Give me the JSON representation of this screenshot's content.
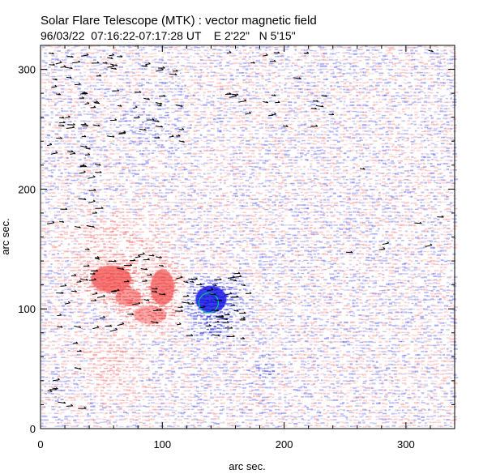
{
  "chart_data": {
    "type": "heatmap",
    "title": "Solar Flare Telescope (MTK) : vector magnetic field",
    "subtitle": "96/03/22  07:16:22-07:17:28 UT    E 2'22\"   N 5'15\"",
    "xlabel": "arc sec.",
    "ylabel": "arc sec.",
    "xlim": [
      0,
      340
    ],
    "ylim": [
      0,
      320
    ],
    "x_ticks": [
      0,
      100,
      200,
      300
    ],
    "y_ticks": [
      0,
      100,
      200,
      300
    ],
    "x_tick_labels": [
      "0",
      "100",
      "200",
      "300"
    ],
    "y_tick_labels": [
      "0",
      "100",
      "200",
      "300"
    ],
    "positive_polarity_color": "#f25a5a",
    "negative_polarity_color": "#1515e0",
    "contour_color": "#00c8a0",
    "arrow_color": "#000000",
    "regions": [
      {
        "polarity": "positive",
        "cx": 58,
        "cy": 125,
        "rx": 22,
        "ry": 15,
        "strength": 0.95
      },
      {
        "polarity": "positive",
        "cx": 72,
        "cy": 110,
        "rx": 14,
        "ry": 10,
        "strength": 0.7
      },
      {
        "polarity": "positive",
        "cx": 100,
        "cy": 118,
        "rx": 13,
        "ry": 20,
        "strength": 0.9
      },
      {
        "polarity": "positive",
        "cx": 90,
        "cy": 95,
        "rx": 18,
        "ry": 10,
        "strength": 0.6
      },
      {
        "polarity": "positive",
        "cx": 60,
        "cy": 160,
        "rx": 45,
        "ry": 25,
        "strength": 0.25
      },
      {
        "polarity": "positive",
        "cx": 60,
        "cy": 55,
        "rx": 22,
        "ry": 25,
        "strength": 0.3
      },
      {
        "polarity": "negative",
        "cx": 140,
        "cy": 108,
        "rx": 17,
        "ry": 15,
        "strength": 1.0
      },
      {
        "polarity": "negative",
        "cx": 140,
        "cy": 85,
        "rx": 14,
        "ry": 10,
        "strength": 0.4
      },
      {
        "polarity": "negative",
        "cx": 80,
        "cy": 120,
        "rx": 5,
        "ry": 5,
        "strength": 0.5
      },
      {
        "polarity": "negative",
        "cx": 185,
        "cy": 48,
        "rx": 8,
        "ry": 8,
        "strength": 0.35
      },
      {
        "polarity": "negative",
        "cx": 90,
        "cy": 255,
        "rx": 25,
        "ry": 18,
        "strength": 0.15
      }
    ],
    "contours": [
      {
        "cx": 138,
        "cy": 105,
        "r": 8
      }
    ],
    "vector_regions": [
      {
        "x": [
          5,
          115
        ],
        "y": [
          240,
          315
        ],
        "count": 70
      },
      {
        "x": [
          5,
          45
        ],
        "y": [
          60,
          240
        ],
        "count": 40
      },
      {
        "x": [
          110,
          170
        ],
        "y": [
          75,
          130
        ],
        "count": 45
      },
      {
        "x": [
          40,
          100
        ],
        "y": [
          80,
          145
        ],
        "count": 35
      },
      {
        "x": [
          150,
          240
        ],
        "y": [
          250,
          315
        ],
        "count": 25
      },
      {
        "x": [
          5,
          40
        ],
        "y": [
          15,
          60
        ],
        "count": 8
      },
      {
        "x": [
          240,
          330
        ],
        "y": [
          140,
          320
        ],
        "count": 8
      }
    ]
  }
}
